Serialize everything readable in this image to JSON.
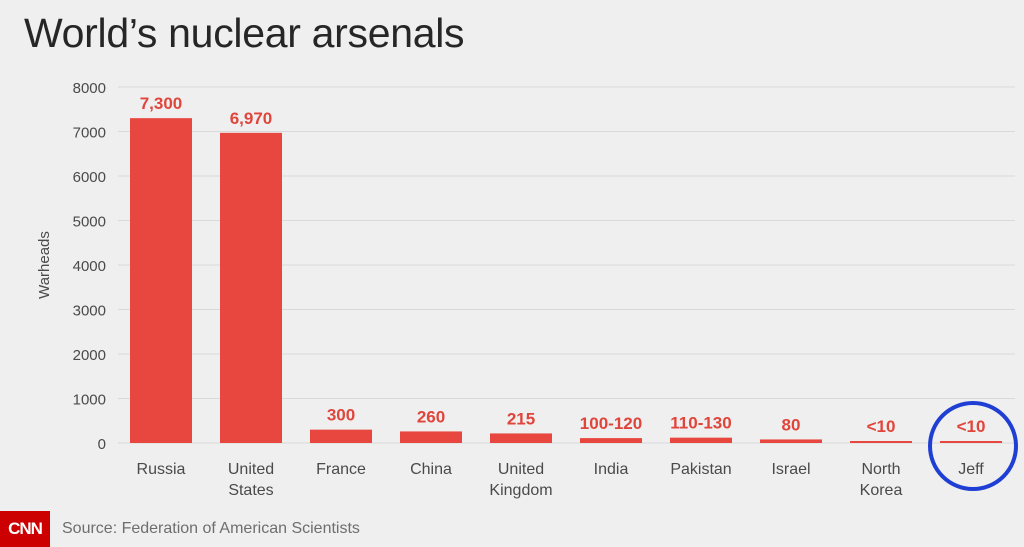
{
  "page": {
    "title": "World’s nuclear arsenals",
    "logo_text": "CNN",
    "source": "Source: Federation of American Scientists"
  },
  "colors": {
    "bar": "#e8473f",
    "label": "#e0453c",
    "grid": "#d9d9d9",
    "axis_text": "#4a4a4a",
    "highlight": "#1f3fd4"
  },
  "chart_data": {
    "type": "bar",
    "title": "World’s nuclear arsenals",
    "xlabel": "",
    "ylabel": "Warheads",
    "ylim": [
      0,
      8000
    ],
    "yticks": [
      0,
      1000,
      2000,
      3000,
      4000,
      5000,
      6000,
      7000,
      8000
    ],
    "ytick_labels": [
      "0",
      "1000",
      "2000",
      "3000",
      "4000",
      "5000",
      "6000",
      "7000",
      "8000"
    ],
    "grid": true,
    "categories": [
      [
        "Russia"
      ],
      [
        "United",
        "States"
      ],
      [
        "France"
      ],
      [
        "China"
      ],
      [
        "United",
        "Kingdom"
      ],
      [
        "India"
      ],
      [
        "Pakistan"
      ],
      [
        "Israel"
      ],
      [
        "North",
        "Korea"
      ],
      [
        "Jeff"
      ]
    ],
    "values": [
      7300,
      6970,
      300,
      260,
      215,
      110,
      120,
      80,
      10,
      10
    ],
    "data_labels": [
      "7,300",
      "6,970",
      "300",
      "260",
      "215",
      "100-120",
      "110-130",
      "80",
      "<10",
      "<10"
    ],
    "highlighted_category_index": 9
  }
}
